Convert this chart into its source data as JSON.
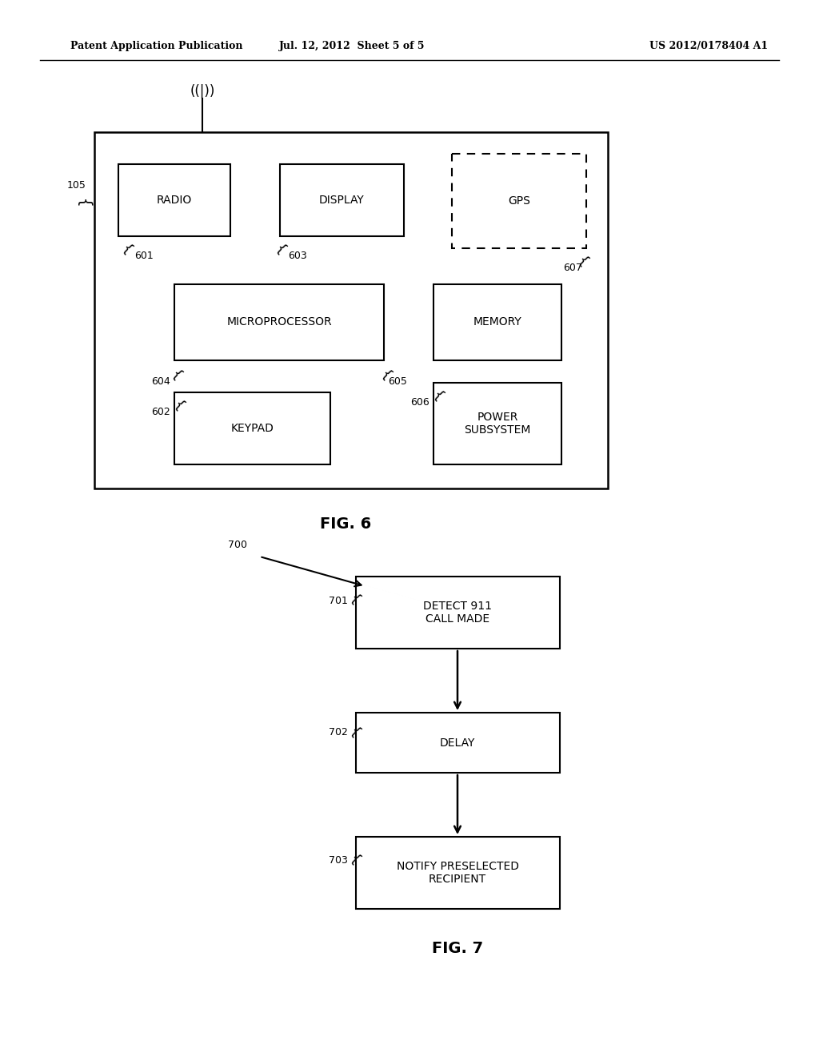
{
  "bg_color": "#ffffff",
  "header_left": "Patent Application Publication",
  "header_center": "Jul. 12, 2012  Sheet 5 of 5",
  "header_right": "US 2012/0178404 A1",
  "fig6_label": "FIG. 6",
  "fig7_label": "FIG. 7",
  "antenna_text": "((|))",
  "radio_text": "RADIO",
  "display_text": "DISPLAY",
  "gps_text": "GPS",
  "mp_text": "MICROPROCESSOR",
  "mem_text": "MEMORY",
  "kp_text": "KEYPAD",
  "pw_text": "POWER\nSUBSYSTEM",
  "b701_text": "DETECT 911\nCALL MADE",
  "b702_text": "DELAY",
  "b703_text": "NOTIFY PRESELECTED\nRECIPIENT",
  "l105": "105",
  "l601": "601",
  "l602": "602",
  "l603": "603",
  "l604": "604",
  "l605": "605",
  "l606": "606",
  "l607": "607",
  "l700": "700",
  "l701": "701",
  "l702": "702",
  "l703": "703"
}
